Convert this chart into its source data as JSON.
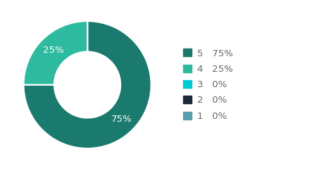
{
  "labels": [
    "5",
    "4",
    "3",
    "2",
    "1"
  ],
  "values": [
    75,
    25,
    0.0001,
    0.0001,
    0.0001
  ],
  "display_pcts": [
    "75%",
    "25%",
    "0%",
    "0%",
    "0%"
  ],
  "colors": [
    "#1b7a6e",
    "#2dba9e",
    "#00c8d4",
    "#1a2a3a",
    "#5a9faf"
  ],
  "text_color": "#666666",
  "background_color": "#ffffff",
  "wedge_text_color": "#ffffff",
  "font_size": 9.5,
  "legend_font_size": 9.5,
  "donut_width": 0.48
}
